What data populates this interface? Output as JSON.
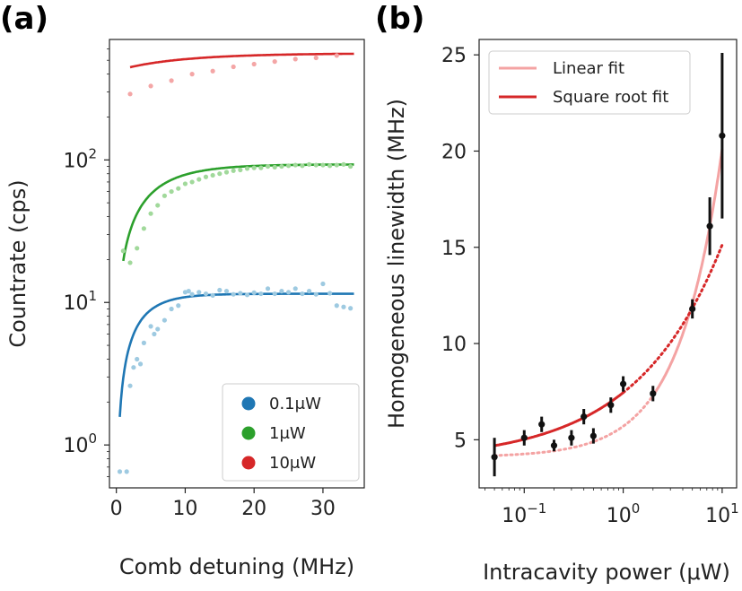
{
  "chart_data": [
    {
      "panel": "(a)",
      "type": "scatter",
      "xlabel": "Comb detuning (MHz)",
      "ylabel": "Countrate (cps)",
      "yscale": "log",
      "xlim": [
        -1,
        36
      ],
      "ylim": [
        0.5,
        700
      ],
      "xticks": [
        0,
        10,
        20,
        30
      ],
      "xtick_labels": [
        "0",
        "10",
        "20",
        "30"
      ],
      "yticks": [
        1,
        10,
        100
      ],
      "ytick_labels": [
        {
          "base": "10",
          "exp": "0"
        },
        {
          "base": "10",
          "exp": "1"
        },
        {
          "base": "10",
          "exp": "2"
        }
      ],
      "legend": {
        "position": "lower-right"
      },
      "series": [
        {
          "name": "0.1μW",
          "color": "#1f77b4",
          "point_color": "#9ecae1",
          "x": [
            0.5,
            1.5,
            2,
            2.5,
            3,
            3.5,
            4,
            5,
            5.5,
            6,
            7,
            8,
            9,
            10,
            10.5,
            11,
            12,
            13,
            14,
            15,
            16,
            17,
            18,
            19,
            20,
            21,
            22,
            23,
            24,
            25,
            26,
            27,
            28,
            29,
            30,
            31,
            32,
            33,
            34
          ],
          "values": [
            0.65,
            0.65,
            2.6,
            3.5,
            4,
            3.7,
            5.2,
            6.8,
            6,
            6.5,
            7.5,
            9,
            9.5,
            11.8,
            12,
            11.4,
            11.8,
            11.5,
            11.2,
            12.2,
            12,
            11.4,
            11.6,
            11.3,
            11.7,
            11.5,
            12.5,
            11.5,
            12,
            11.8,
            12.5,
            11.5,
            12,
            11.4,
            13.5,
            11.6,
            9.5,
            9.3,
            9.1
          ],
          "fit": {
            "model": "saturation",
            "A": 11.5,
            "x0": 0,
            "tau": 3.4
          }
        },
        {
          "name": "1μW",
          "color": "#2ca02c",
          "point_color": "#a1d99b",
          "x": [
            1,
            2,
            3,
            4,
            5,
            6,
            7,
            8,
            9,
            10,
            11,
            12,
            13,
            14,
            15,
            16,
            17,
            18,
            19,
            20,
            21,
            22,
            23,
            24,
            25,
            26,
            27,
            28,
            29,
            30,
            31,
            32,
            33,
            34
          ],
          "values": [
            23,
            19,
            24,
            33,
            42,
            48,
            56,
            60,
            63,
            68,
            70,
            73,
            76,
            78,
            80,
            82,
            84,
            85,
            87,
            88,
            88,
            90,
            89,
            90,
            91,
            92,
            91,
            93,
            92,
            92,
            91,
            92,
            93,
            90
          ],
          "fit": {
            "model": "saturation",
            "A": 93,
            "x0": -0.3,
            "tau": 5.5
          }
        },
        {
          "name": "10μW",
          "color": "#d62728",
          "point_color": "#f4a6a6",
          "x": [
            2,
            5,
            8,
            11,
            14,
            17,
            20,
            23,
            26,
            29,
            32
          ],
          "values": [
            290,
            330,
            360,
            400,
            420,
            450,
            470,
            490,
            510,
            520,
            540
          ],
          "fit": {
            "model": "saturation",
            "A": 560,
            "x0": -14,
            "tau": 10
          }
        }
      ]
    },
    {
      "panel": "(b)",
      "type": "scatter",
      "xlabel": "Intracavity power (μW)",
      "ylabel": "Homogeneous linewidth (MHz)",
      "xscale": "log",
      "xlim": [
        0.035,
        14
      ],
      "ylim": [
        2.5,
        25.8
      ],
      "xticks": [
        0.1,
        1,
        10
      ],
      "xtick_labels": [
        {
          "base": "10",
          "exp": "−1"
        },
        {
          "base": "10",
          "exp": "0"
        },
        {
          "base": "10",
          "exp": "1"
        }
      ],
      "yticks": [
        5,
        10,
        15,
        20,
        25
      ],
      "ytick_labels": [
        "5",
        "10",
        "15",
        "20",
        "25"
      ],
      "legend": {
        "position": "top-left"
      },
      "points": {
        "color": "#111111",
        "x": [
          0.05,
          0.1,
          0.15,
          0.2,
          0.3,
          0.4,
          0.5,
          0.75,
          1.0,
          2.0,
          5.0,
          7.5,
          10.0
        ],
        "values": [
          4.1,
          5.1,
          5.8,
          4.7,
          5.1,
          6.2,
          5.2,
          6.8,
          7.9,
          7.4,
          11.8,
          16.1,
          20.8
        ],
        "errors": [
          1.0,
          0.4,
          0.4,
          0.3,
          0.4,
          0.4,
          0.4,
          0.4,
          0.4,
          0.4,
          0.5,
          1.5,
          4.3
        ]
      },
      "fits": [
        {
          "name": "Linear fit",
          "color": "#f4a3a3",
          "model": "linear",
          "a": 4.1,
          "b": 1.6,
          "solid_from": 2.0
        },
        {
          "name": "Square root fit",
          "color": "#d62728",
          "model": "sqrt",
          "a": 3.9,
          "b": 3.55,
          "solid_to": 1.0
        }
      ]
    }
  ]
}
